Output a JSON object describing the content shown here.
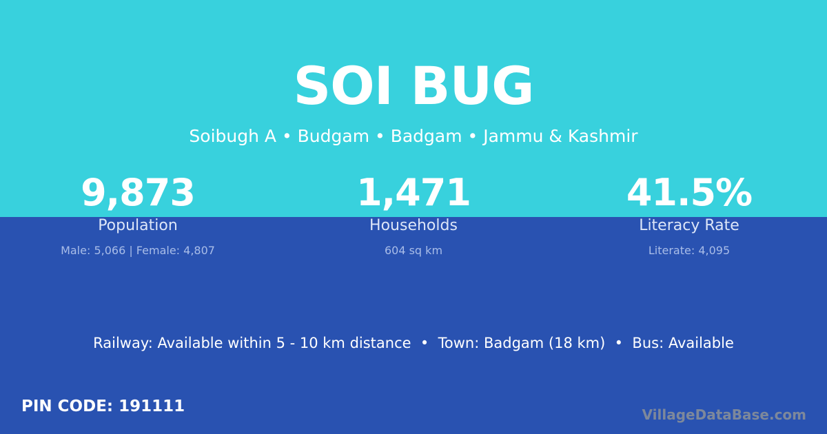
{
  "village": {
    "name": "SOI BUG",
    "location": "Soibugh A • Budgam • Badgam • Jammu & Kashmir"
  },
  "stats": [
    {
      "value": "9,873",
      "label": "Population",
      "detail": "Male: 5,066 | Female: 4,807"
    },
    {
      "value": "1,471",
      "label": "Households",
      "detail": "604 sq km"
    },
    {
      "value": "41.5%",
      "label": "Literacy Rate",
      "detail": "Literate: 4,095"
    }
  ],
  "connectivity": "Railway: Available within 5 - 10 km distance  •  Town: Badgam (18 km)  •  Bus: Available",
  "pin_code": "PIN CODE: 191111",
  "brand": "VillageDataBase.com",
  "colors": {
    "top": "#38d1dd",
    "bottom": "#2952b1"
  }
}
